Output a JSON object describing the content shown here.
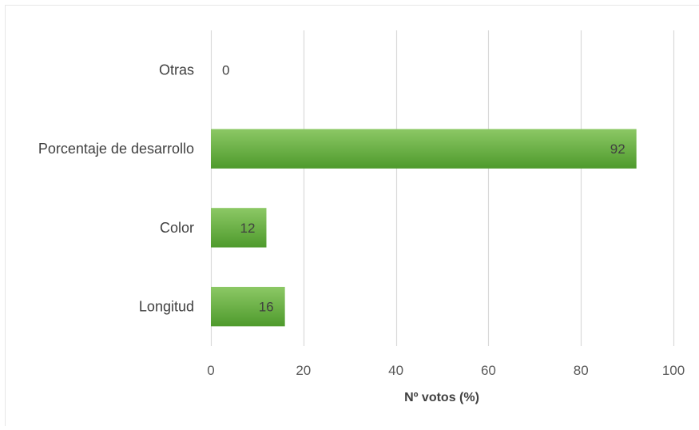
{
  "chart_data": {
    "type": "bar",
    "orientation": "horizontal",
    "categories": [
      "Otras",
      "Porcentaje de desarrollo",
      "Color",
      "Longitud"
    ],
    "values": [
      0,
      92,
      12,
      16
    ],
    "data_labels": [
      "0",
      "92",
      "12",
      "16"
    ],
    "xlabel": "Nº votos (%)",
    "ylabel": "",
    "xlim": [
      0,
      100
    ],
    "x_ticks": [
      0,
      20,
      40,
      60,
      80,
      100
    ],
    "grid": "vertical",
    "legend": "none",
    "colors": {
      "bar_light": "#8cc865",
      "bar_dark": "#4e9a2c",
      "gridline": "#d9d9d9"
    }
  }
}
